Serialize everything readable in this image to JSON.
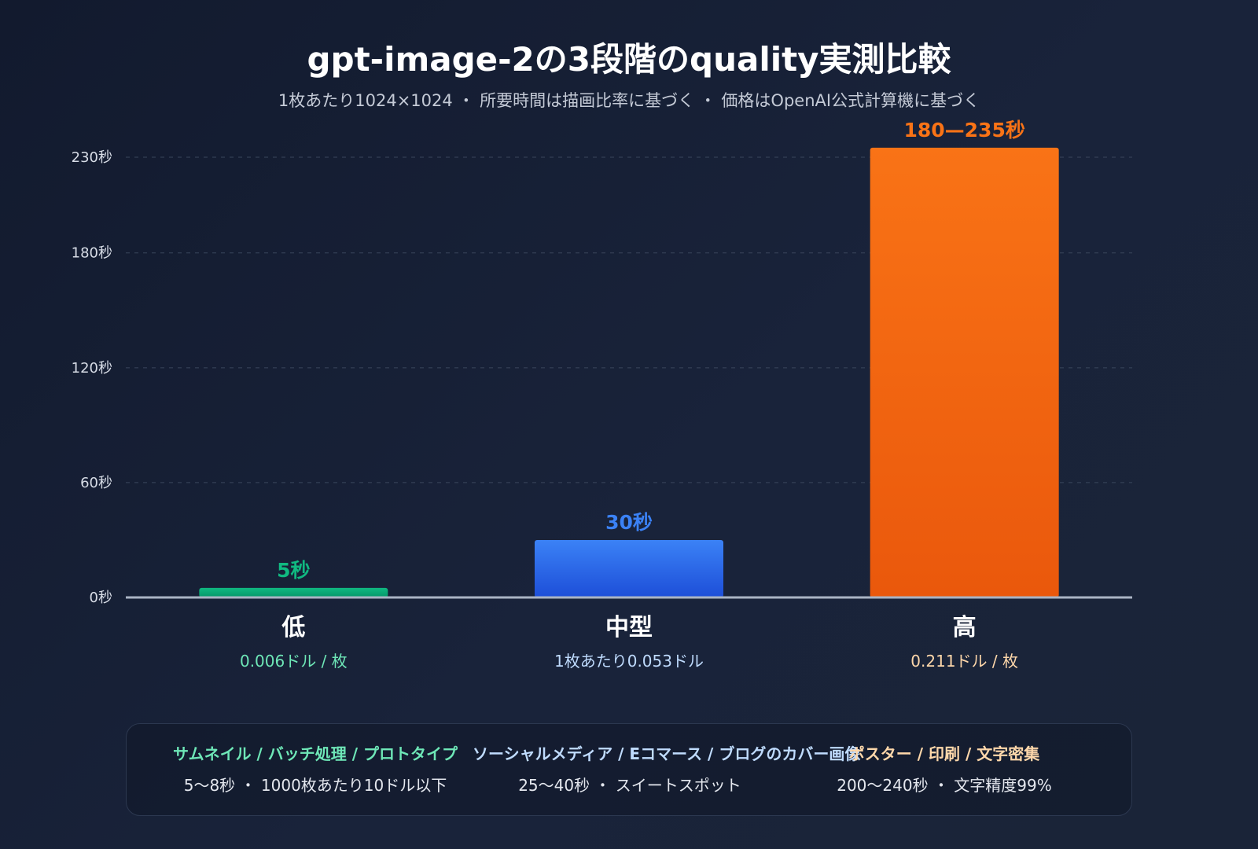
{
  "chart_data": {
    "type": "bar",
    "title": "gpt-image-2の3段階のquality実測比較",
    "subtitle": "1枚あたり1024×1024 ・ 所要時間は描画比率に基づく ・ 価格はOpenAI公式計算機に基づく",
    "categories": [
      "低",
      "中型",
      "高"
    ],
    "values": [
      5,
      30,
      235
    ],
    "value_labels": [
      "5秒",
      "30秒",
      "180—235秒"
    ],
    "price_labels": [
      "0.006ドル / 枚",
      "1枚あたり0.053ドル",
      "0.211ドル / 枚"
    ],
    "y_ticks": [
      0,
      60,
      120,
      180,
      230
    ],
    "y_tick_labels": [
      "0秒",
      "60秒",
      "120秒",
      "180秒",
      "230秒"
    ],
    "ylim": [
      0,
      230
    ],
    "grid": true,
    "colors": {
      "low": "#10b981",
      "low_light": "#6ee7b7",
      "medium": "#3b82f6",
      "medium_dark": "#1d4ed8",
      "medium_light": "#bfdbfe",
      "high": "#f97316",
      "high_dark": "#ea580c",
      "high_light": "#fed7aa"
    }
  },
  "use_cases": [
    {
      "title": "サムネイル / バッチ処理 / プロトタイプ",
      "desc": "5〜8秒 ・ 1000枚あたり10ドル以下",
      "color": "#6ee7b7"
    },
    {
      "title": "ソーシャルメディア / Eコマース / ブログのカバー画像",
      "desc": "25〜40秒 ・ スイートスポット",
      "color": "#bfdbfe"
    },
    {
      "title": "ポスター / 印刷 / 文字密集",
      "desc": "200〜240秒 ・ 文字精度99%",
      "color": "#fed7aa"
    }
  ]
}
